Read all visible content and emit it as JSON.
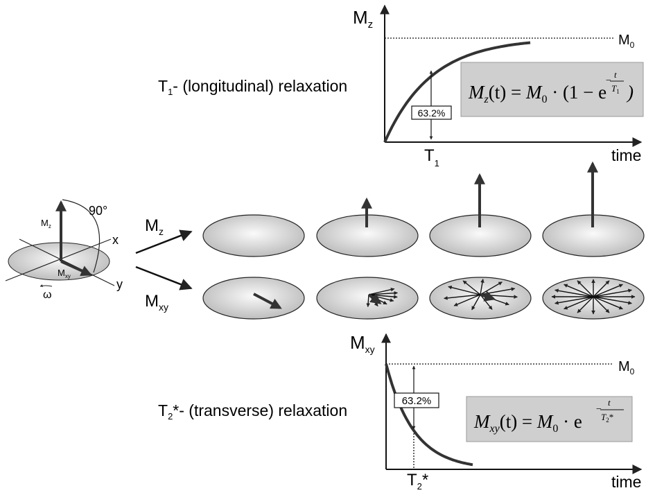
{
  "top_plot": {
    "title": {
      "main": "T",
      "sub": "1",
      "rest": "- (longitudinal) relaxation"
    },
    "y_label": {
      "main": "M",
      "sub": "z"
    },
    "asymptote_label": {
      "main": "M",
      "sub": "0"
    },
    "x_label": "time",
    "marker_label": {
      "main": "T",
      "sub": "1"
    },
    "percent_label": "63.2%",
    "formula": {
      "lhs": "M",
      "lhs_sub": "z",
      "lhs_rest": "(t) = ",
      "rhs": "M",
      "rhs_sub": "0",
      "rest": " · (1 − e",
      "exp_sign": "−",
      "exp_num": "t",
      "exp_den": "T",
      "exp_den_sub": "1",
      "close": ")"
    }
  },
  "left_diagram": {
    "mz_label": {
      "main": "M",
      "sub": "z"
    },
    "angle_label": "90°",
    "x_label": "x",
    "y_label": "y",
    "mxy_label": {
      "main": "M",
      "sub": "xy"
    },
    "omega_label": "ω"
  },
  "rows": [
    {
      "main": "M",
      "sub": "z"
    },
    {
      "main": "M",
      "sub": "xy"
    }
  ],
  "bottom_plot": {
    "title": {
      "main": "T",
      "sub": "2",
      "rest": "*- (transverse) relaxation"
    },
    "y_label": {
      "main": "M",
      "sub": "xy"
    },
    "asymptote_label": {
      "main": "M",
      "sub": "0"
    },
    "x_label": "time",
    "marker_label": {
      "main": "T",
      "sub": "2",
      "rest": "*"
    },
    "percent_label": "63.2%",
    "formula": {
      "lhs": "M",
      "lhs_sub": "xy",
      "lhs_rest": "(t) = ",
      "rhs": "M",
      "rhs_sub": "0",
      "rest": " · e",
      "exp_sign": "−",
      "exp_num": "t",
      "exp_den": "T",
      "exp_den_sub": "2",
      "exp_den_rest": "*"
    }
  }
}
